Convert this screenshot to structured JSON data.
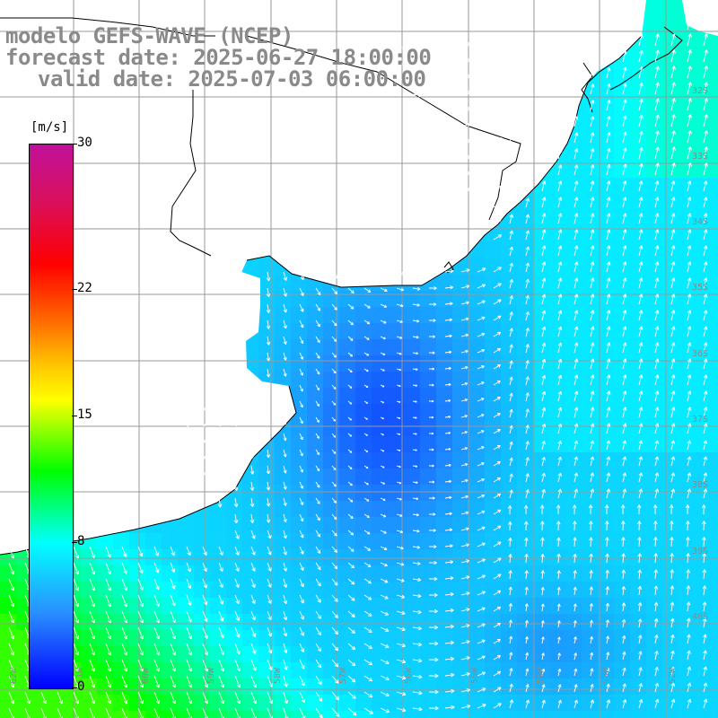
{
  "title": {
    "line1": "modelo GEFS-WAVE (NCEP)",
    "line2": "forecast date: 2025-06-27 18:00:00",
    "line3": "valid date: 2025-07-03 06:00:00"
  },
  "colorbar": {
    "unit": "[m/s]",
    "ticks": [
      {
        "label": "30",
        "value": 30
      },
      {
        "label": "22",
        "value": 22
      },
      {
        "label": "15",
        "value": 15
      },
      {
        "label": "8",
        "value": 8
      },
      {
        "label": "0",
        "value": 0
      }
    ],
    "min": 0,
    "max": 30
  },
  "map": {
    "latitude_labels": [
      "32S",
      "33S",
      "34S",
      "35S",
      "36S",
      "37S",
      "38S",
      "39S",
      "40S"
    ],
    "longitude_labels": [
      "62W",
      "61W",
      "60W",
      "59W",
      "58W",
      "57W",
      "56W",
      "55W",
      "54W",
      "53W",
      "52W"
    ],
    "colors": {
      "land": "#ffffff",
      "grid": "#999999",
      "coast": "#000000",
      "arrows": "#ffffff",
      "label": "#8a8a8a"
    }
  }
}
